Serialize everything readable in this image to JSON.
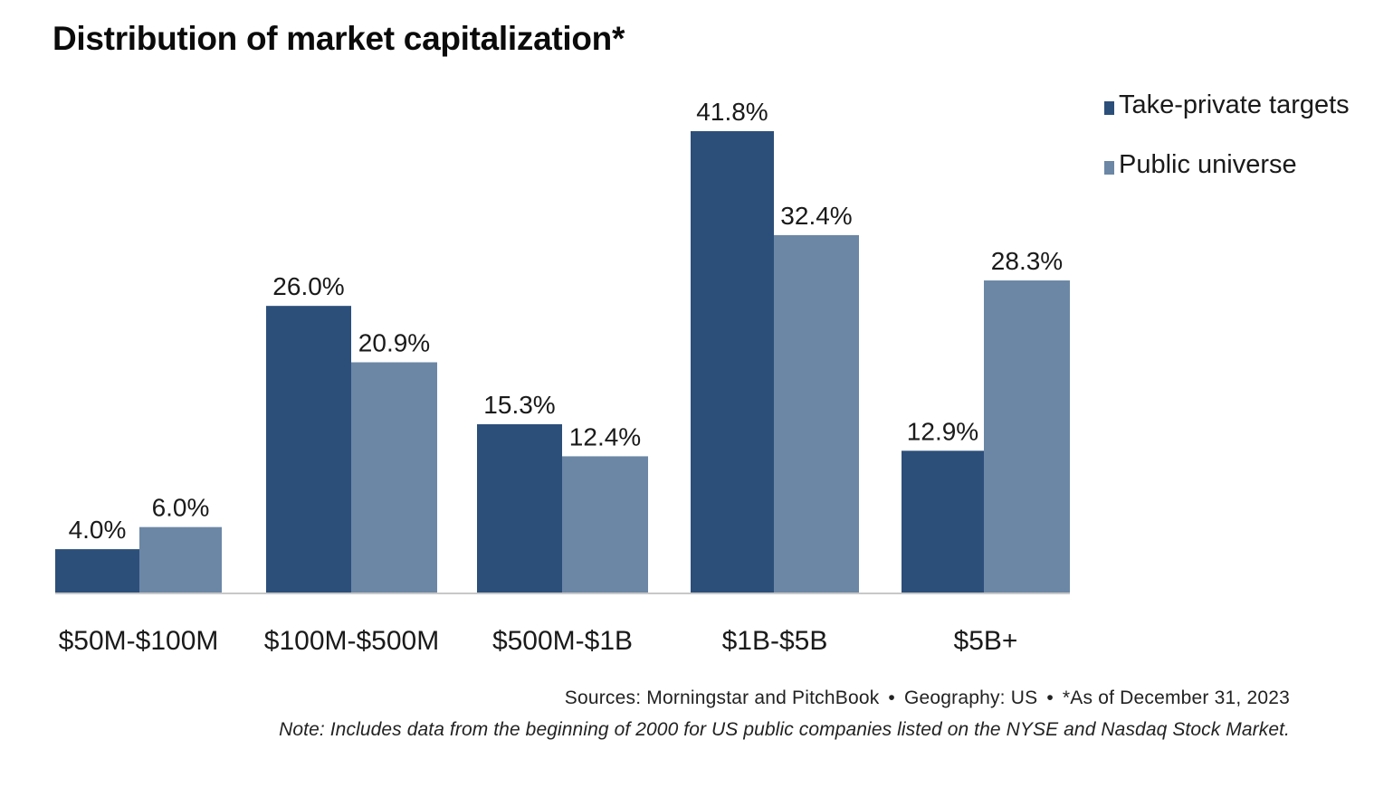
{
  "chart_data": {
    "type": "bar",
    "title": "Distribution of market capitalization*",
    "categories": [
      "$50M-$100M",
      "$100M-$500M",
      "$500M-$1B",
      "$1B-$5B",
      "$5B+"
    ],
    "series": [
      {
        "name": "Take-private targets",
        "color": "#2c4f7a",
        "values": [
          4.0,
          26.0,
          15.3,
          41.8,
          12.9
        ],
        "labels": [
          "4.0%",
          "26.0%",
          "15.3%",
          "41.8%",
          "12.9%"
        ]
      },
      {
        "name": "Public universe",
        "color": "#6c87a6",
        "values": [
          6.0,
          20.9,
          12.4,
          32.4,
          28.3
        ],
        "labels": [
          "6.0%",
          "20.9%",
          "12.4%",
          "32.4%",
          "28.3%"
        ]
      }
    ],
    "xlabel": "",
    "ylabel": "",
    "ylim": [
      0,
      41.8
    ],
    "grid": false,
    "legend_position": "top-right"
  },
  "footer": {
    "source_1": "Sources: Morningstar and PitchBook",
    "separator": "•",
    "source_2": "Geography: US",
    "source_3": "*As of December 31, 2023",
    "note": "Note: Includes data from the beginning of 2000 for US public companies listed on the NYSE and Nasdaq Stock Market."
  }
}
